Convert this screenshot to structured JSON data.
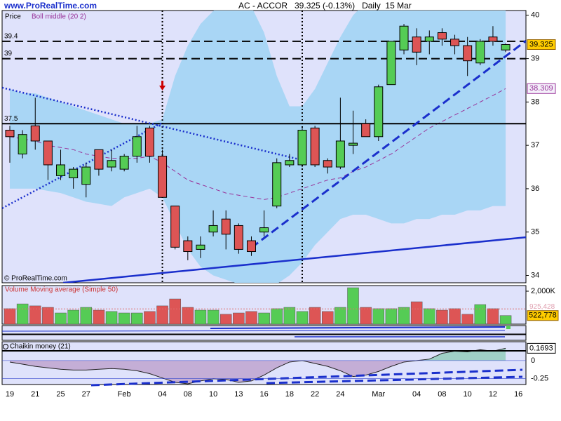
{
  "header": {
    "site": "www.ProRealTime.com",
    "title": "AC - ACCOR   39.325 (-0.13%)   Daily  15 Mar",
    "copyright": "© ProRealTime.com"
  },
  "chart_data": [
    {
      "type": "candlestick",
      "price_label": "Price",
      "boll_label": "Boll middle (20 2)",
      "categories": [
        "19",
        null,
        "21",
        null,
        "25",
        null,
        "27",
        null,
        null,
        "Feb",
        null,
        null,
        "04",
        null,
        "08",
        null,
        "10",
        null,
        "13",
        null,
        "16",
        null,
        "18",
        null,
        "22",
        null,
        "24",
        null,
        null,
        "Mar",
        null,
        null,
        "04",
        null,
        "08",
        null,
        "10",
        null,
        "12",
        null,
        "16"
      ],
      "open": [
        37.35,
        36.8,
        37.45,
        37.1,
        36.3,
        36.25,
        36.1,
        36.9,
        36.5,
        36.45,
        36.75,
        37.4,
        36.75,
        35.6,
        34.8,
        34.6,
        35.0,
        35.3,
        35.15,
        34.8,
        35.0,
        35.6,
        36.55,
        36.55,
        37.4,
        36.65,
        36.5,
        37.0,
        37.5,
        37.2,
        38.4,
        39.2,
        39.5,
        39.4,
        39.6,
        39.45,
        39.3,
        38.9,
        39.5,
        39.2,
        null
      ],
      "high": [
        37.45,
        37.35,
        38.1,
        37.1,
        36.9,
        36.5,
        36.6,
        36.9,
        36.9,
        36.8,
        37.45,
        37.45,
        36.9,
        35.6,
        34.9,
        34.9,
        35.5,
        35.5,
        35.2,
        34.9,
        35.5,
        36.7,
        36.8,
        37.4,
        37.45,
        36.7,
        38.1,
        37.8,
        37.6,
        38.4,
        39.4,
        39.8,
        39.7,
        39.65,
        39.7,
        39.55,
        39.5,
        39.45,
        39.75,
        39.35,
        null
      ],
      "low": [
        36.6,
        36.7,
        36.9,
        36.2,
        36.2,
        36.0,
        35.8,
        36.3,
        36.4,
        36.4,
        36.6,
        36.6,
        35.8,
        34.6,
        34.35,
        34.4,
        34.9,
        34.6,
        34.5,
        34.45,
        34.9,
        35.55,
        36.5,
        36.5,
        36.5,
        36.35,
        36.45,
        36.8,
        37.2,
        37.1,
        38.4,
        39.1,
        38.85,
        39.1,
        39.3,
        39.1,
        38.6,
        38.85,
        39.3,
        39.15,
        null
      ],
      "close": [
        37.2,
        37.25,
        37.1,
        36.55,
        36.55,
        36.45,
        36.5,
        36.45,
        36.65,
        36.75,
        37.2,
        36.75,
        35.8,
        34.65,
        34.55,
        34.7,
        35.15,
        34.95,
        34.6,
        34.55,
        35.1,
        36.6,
        36.65,
        37.35,
        36.55,
        36.5,
        37.1,
        37.05,
        37.2,
        38.35,
        39.4,
        39.75,
        39.15,
        39.5,
        39.45,
        39.3,
        38.95,
        39.4,
        39.4,
        39.325,
        null
      ],
      "boll_upper": [
        38.3,
        38.2,
        38.2,
        38.1,
        38.0,
        37.9,
        37.8,
        37.7,
        37.6,
        37.5,
        37.5,
        37.5,
        37.6,
        38.6,
        39.3,
        39.8,
        40.1,
        40.3,
        40.3,
        40.2,
        39.6,
        38.6,
        37.9,
        37.9,
        38.3,
        38.9,
        39.5,
        40.0,
        40.3,
        40.4,
        40.4,
        40.4,
        40.4,
        40.4,
        40.4,
        40.4,
        40.4,
        40.4,
        40.4,
        40.4,
        null
      ],
      "boll_middle": [
        37.2,
        37.15,
        37.1,
        37.0,
        36.95,
        36.9,
        36.8,
        36.75,
        36.7,
        36.7,
        36.7,
        36.75,
        36.6,
        36.4,
        36.2,
        36.1,
        36.0,
        35.9,
        35.85,
        35.8,
        35.75,
        35.8,
        35.9,
        36.0,
        36.1,
        36.2,
        36.25,
        36.4,
        36.5,
        36.65,
        36.8,
        37.0,
        37.2,
        37.4,
        37.55,
        37.7,
        37.85,
        38.0,
        38.15,
        38.309,
        null
      ],
      "boll_lower": [
        36.0,
        36.0,
        36.0,
        35.95,
        35.9,
        35.8,
        35.7,
        35.65,
        35.6,
        35.8,
        35.9,
        36.0,
        35.8,
        35.2,
        34.6,
        34.2,
        34.0,
        33.9,
        33.8,
        33.7,
        33.7,
        33.8,
        34.0,
        34.3,
        34.7,
        35.0,
        35.3,
        35.4,
        35.4,
        35.3,
        35.2,
        35.2,
        35.3,
        35.3,
        35.4,
        35.4,
        35.5,
        35.5,
        35.6,
        35.6,
        null
      ],
      "hlines": [
        {
          "value": 39.4,
          "style": "dashed"
        },
        {
          "value": 39,
          "style": "dashed"
        },
        {
          "value": 37.5,
          "style": "solid"
        }
      ],
      "trendlines": [
        {
          "from": [
            -0.6,
            38.33
          ],
          "to": [
            23,
            36.66
          ],
          "style": "dotted"
        },
        {
          "from": [
            -0.6,
            35.55
          ],
          "to": [
            12,
            37.52
          ],
          "style": "dotted"
        },
        {
          "from": [
            19,
            34.64
          ],
          "to": [
            40.6,
            39.41
          ],
          "style": "dashed"
        },
        {
          "from": [
            4.2,
            33.83
          ],
          "to": [
            40.6,
            34.88
          ],
          "style": "solid"
        }
      ],
      "vlines": [
        12,
        23
      ],
      "ylim": [
        33.83,
        40.11
      ],
      "yticks": [
        34,
        35,
        36,
        37,
        38,
        39,
        40
      ],
      "up_color": "#55cc55",
      "down_color": "#dd5555",
      "band_color": "#a9d6f5",
      "middle_color": "#993399",
      "trend_color": "#1a2fcc"
    },
    {
      "type": "bar",
      "name": "Volume Moving average (Simple 50)",
      "values": [
        940000,
        1230000,
        1110000,
        1020000,
        680000,
        850000,
        1020000,
        850000,
        770000,
        680000,
        680000,
        770000,
        1110000,
        1530000,
        1020000,
        850000,
        850000,
        600000,
        680000,
        770000,
        680000,
        940000,
        1020000,
        770000,
        1020000,
        770000,
        1020000,
        2210000,
        1020000,
        940000,
        940000,
        1020000,
        1360000,
        940000,
        850000,
        940000,
        600000,
        1190000,
        940000,
        522778,
        null
      ],
      "value_labels": [
        null,
        null,
        null,
        null,
        null,
        null,
        null,
        null,
        null,
        null,
        null,
        null,
        null,
        null,
        null,
        null,
        null,
        null,
        null,
        null,
        null,
        null,
        null,
        null,
        null,
        null,
        null,
        null,
        null,
        null,
        null,
        null,
        null,
        null,
        null,
        null,
        null,
        null,
        null,
        "522,778",
        null
      ],
      "ma": {
        "value": 925428,
        "label": "925,428"
      },
      "ylim": [
        0,
        2340000
      ],
      "yticks": [
        {
          "value": 2000000,
          "label": "2,000K"
        }
      ]
    },
    {
      "type": "area",
      "name": "Chaikin money (21)",
      "values": [
        -0.02,
        -0.05,
        -0.08,
        -0.1,
        -0.12,
        -0.13,
        -0.13,
        -0.12,
        -0.11,
        -0.12,
        -0.14,
        -0.18,
        -0.24,
        -0.3,
        -0.32,
        -0.28,
        -0.25,
        -0.26,
        -0.3,
        -0.28,
        -0.2,
        -0.1,
        -0.02,
        0.0,
        -0.04,
        -0.08,
        -0.14,
        -0.22,
        -0.2,
        -0.15,
        -0.08,
        -0.02,
        0.0,
        0.02,
        0.1,
        0.13,
        0.12,
        0.15,
        0.13,
        0.1693,
        null
      ],
      "ylim": [
        -0.33,
        0.26
      ],
      "yticks": [
        0,
        -0.25
      ],
      "pos_color": "#9fd0c6",
      "neg_color": "#c4aed6"
    }
  ]
}
